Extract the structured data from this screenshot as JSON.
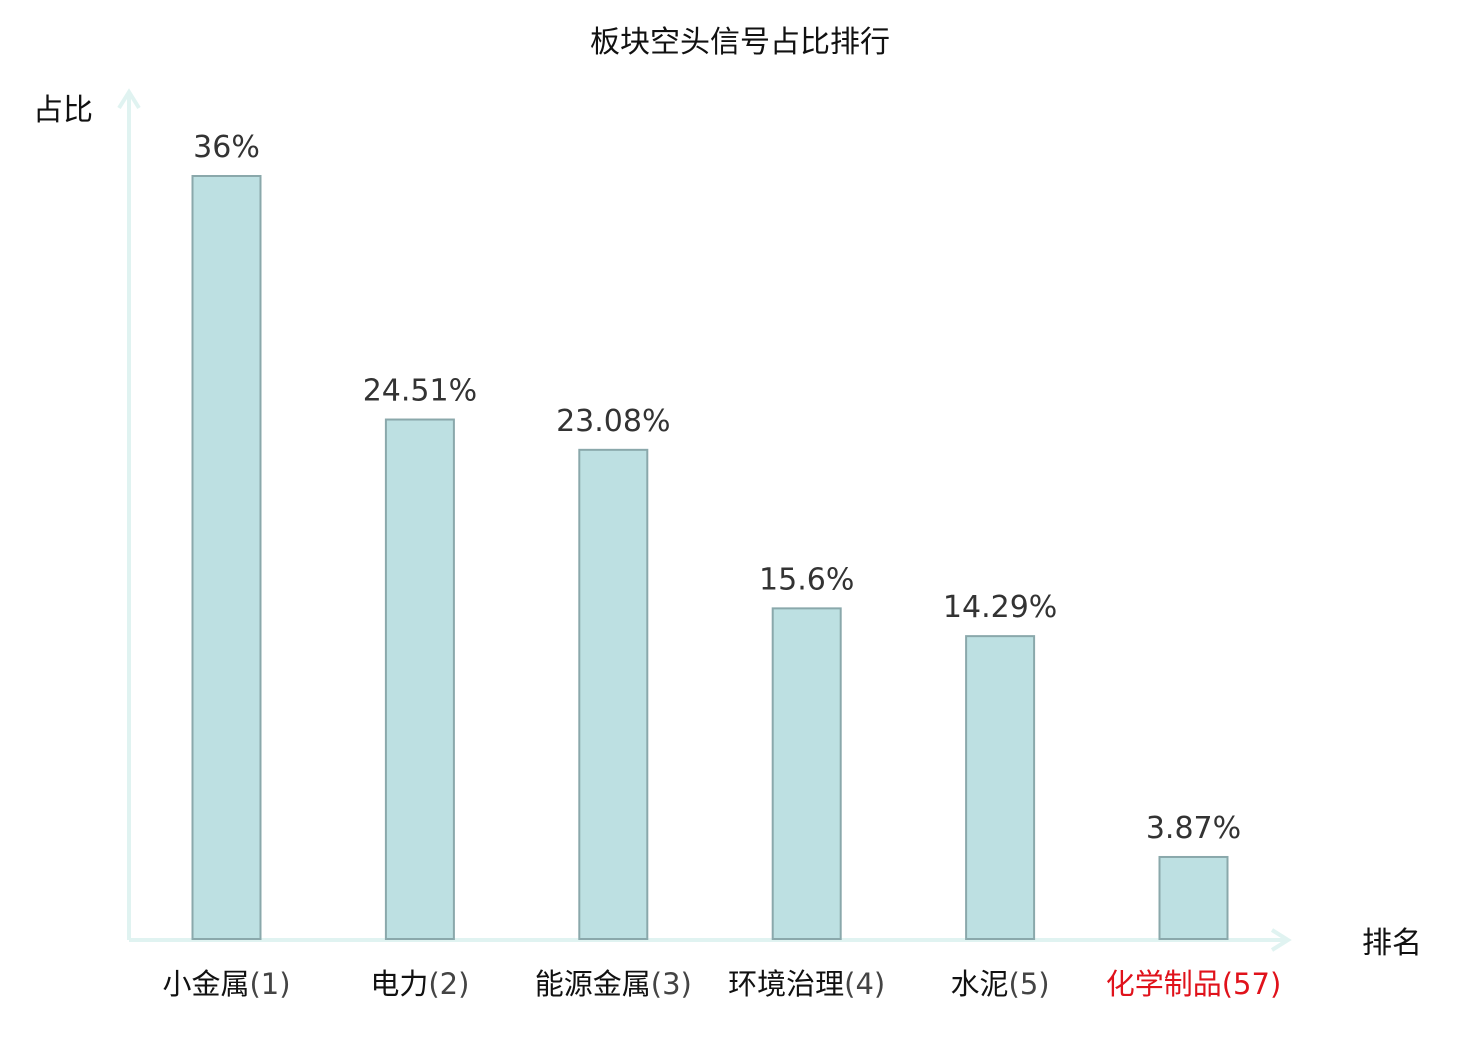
{
  "chart_data": {
    "type": "bar",
    "title": "板块空头信号占比排行",
    "ylabel": "占比",
    "xlabel": "排名",
    "categories": [
      {
        "name": "小金属",
        "rank": "(1)"
      },
      {
        "name": "电力",
        "rank": "(2)"
      },
      {
        "name": "能源金属",
        "rank": "(3)"
      },
      {
        "name": "环境治理",
        "rank": "(4)"
      },
      {
        "name": "水泥",
        "rank": "(5)"
      },
      {
        "name": "化学制品",
        "rank": "(57)"
      }
    ],
    "values": [
      36,
      24.51,
      23.08,
      15.6,
      14.29,
      3.87
    ],
    "value_labels": [
      "36%",
      "24.51%",
      "23.08%",
      "15.6%",
      "14.29%",
      "3.87%"
    ],
    "ylim": [
      0,
      36
    ],
    "highlight_index": 5,
    "colors": {
      "bar_fill": "#bde0e2",
      "bar_stroke": "#8aa8ab",
      "axis": "#e0f3f1",
      "label_text": "#333333",
      "category_text": "#111111",
      "rank_text": "#444444",
      "highlight": "#e0121b"
    }
  }
}
